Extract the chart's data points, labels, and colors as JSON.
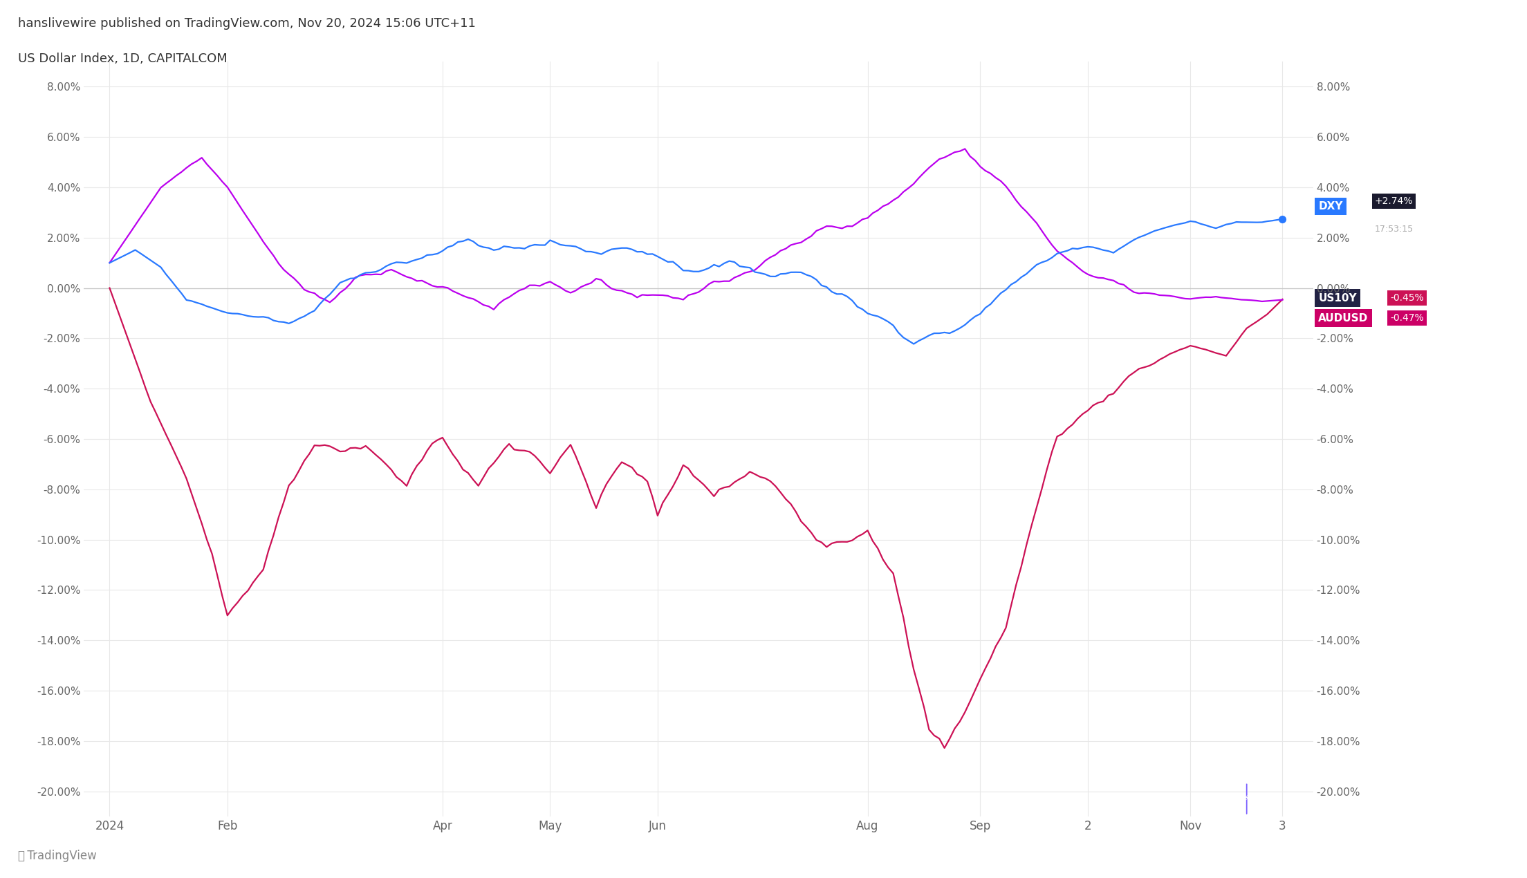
{
  "title_top": "hanslivewire published on TradingView.com, Nov 20, 2024 15:06 UTC+11",
  "subtitle": "US Dollar Index, 1D, CAPITALCOM",
  "bg_color": "#ffffff",
  "plot_bg_color": "#ffffff",
  "grid_color": "#e8e8e8",
  "ylim": [
    -0.21,
    0.09
  ],
  "yticks": [
    -0.2,
    -0.18,
    -0.16,
    -0.14,
    -0.12,
    -0.1,
    -0.08,
    -0.06,
    -0.04,
    -0.02,
    0.0,
    0.02,
    0.04,
    0.06,
    0.08
  ],
  "x_labels": [
    "2024",
    "Feb",
    "Apr",
    "May",
    "Jun",
    "Aug",
    "Sep",
    "2",
    "Nov",
    "3"
  ],
  "x_positions": [
    0,
    23,
    65,
    86,
    107,
    148,
    170,
    191,
    211,
    229
  ],
  "dxy_color": "#2979ff",
  "us10y_color": "#cc1155",
  "audusd_color": "#bb00ee",
  "watermark_color": "#7b61ff",
  "zero_line_color": "#d0d0d0",
  "n_points": 230
}
